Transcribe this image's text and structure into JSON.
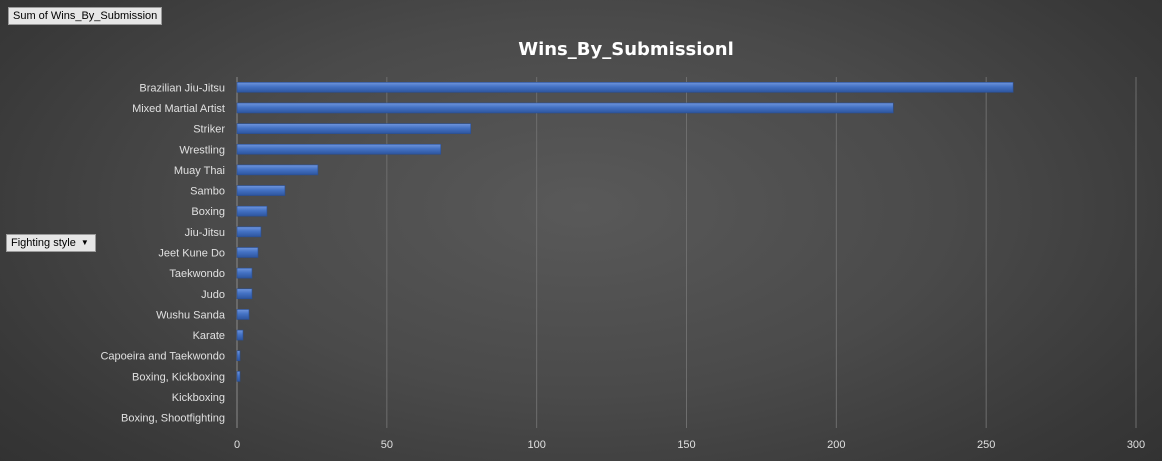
{
  "pivot": {
    "value_field": "Sum of Wins_By_Submission",
    "row_field": "Fighting style"
  },
  "chart_data": {
    "type": "bar",
    "orientation": "horizontal",
    "title": "Wins_By_Submissionl",
    "categories": [
      "Brazilian Jiu-Jitsu",
      "Mixed Martial Artist",
      "Striker",
      "Wrestling",
      "Muay Thai",
      "Sambo",
      "Boxing",
      "Jiu-Jitsu",
      "Jeet Kune Do",
      "Taekwondo",
      "Judo",
      "Wushu Sanda",
      "Karate",
      "Capoeira and Taekwondo",
      "Boxing, Kickboxing",
      "Kickboxing",
      "Boxing, Shootfighting"
    ],
    "values": [
      259,
      219,
      78,
      68,
      27,
      16,
      10,
      8,
      7,
      5,
      5,
      4,
      2,
      1,
      1,
      0,
      0
    ],
    "xlim": [
      0,
      300
    ],
    "xticks": [
      "0",
      "50",
      "100",
      "150",
      "200",
      "250",
      "300"
    ],
    "grid": true,
    "bar_color": "#4472C4"
  }
}
